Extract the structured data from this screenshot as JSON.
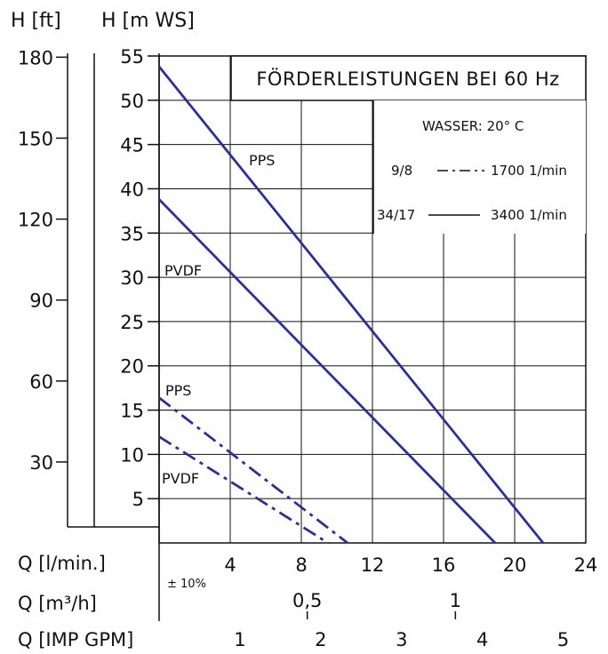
{
  "chart_data": {
    "type": "line",
    "title": "FÖRDERLEISTUNGEN BEI 60 Hz",
    "medium_label": "WASSER: 20° C",
    "tolerance_label": "± 10%",
    "legend": [
      {
        "label": "9/8",
        "style": "dash-dot",
        "speed": "1700 1/min"
      },
      {
        "label": "34/17",
        "style": "solid",
        "speed": "3400 1/min"
      }
    ],
    "axes": {
      "y_ft": {
        "label": "H [ft]",
        "ticks": [
          180,
          150,
          120,
          90,
          60,
          30
        ]
      },
      "y_m": {
        "label": "H [m WS]",
        "ticks": [
          55,
          50,
          45,
          40,
          35,
          30,
          25,
          20,
          15,
          10,
          5
        ],
        "range": [
          0,
          55
        ]
      },
      "x_lmin": {
        "label": "Q [l/min.]",
        "ticks": [
          4,
          8,
          12,
          16,
          20,
          24
        ],
        "range": [
          0,
          24
        ]
      },
      "x_m3h": {
        "label": "Q [m³/h]",
        "ticks": [
          "0,5",
          "1"
        ]
      },
      "x_gpm": {
        "label": "Q [IMP GPM]",
        "ticks": [
          "1",
          "2",
          "3",
          "4",
          "5"
        ]
      }
    },
    "series": [
      {
        "name": "PPS",
        "style": "solid",
        "x": [
          0,
          21.6
        ],
        "y": [
          53.8,
          0
        ]
      },
      {
        "name": "PVDF",
        "style": "solid",
        "x": [
          0,
          18.9
        ],
        "y": [
          38.8,
          0
        ]
      },
      {
        "name": "PPS",
        "style": "dash-dot",
        "x": [
          0,
          10.6
        ],
        "y": [
          16.4,
          0
        ]
      },
      {
        "name": "PVDF",
        "style": "dash-dot",
        "x": [
          0,
          9.5
        ],
        "y": [
          12.0,
          0
        ]
      }
    ],
    "color": "#2e3192",
    "grid": true
  }
}
